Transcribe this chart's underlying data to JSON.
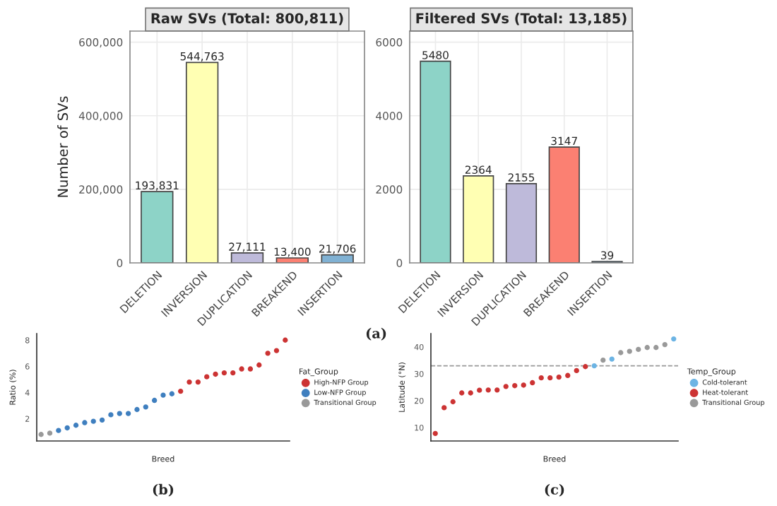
{
  "chart_data": [
    {
      "type": "bar",
      "title": "Raw SVs (Total: 800,811)",
      "ylabel": "Number of SVs",
      "categories": [
        "DELETION",
        "INVERSION",
        "DUPLICATION",
        "BREAKEND",
        "INSERTION"
      ],
      "values": [
        193831,
        544763,
        27111,
        13400,
        21706
      ],
      "colors": [
        "#8dd3c7",
        "#ffffb3",
        "#bebada",
        "#fb8072",
        "#80b1d3"
      ],
      "ylim": [
        0,
        630000
      ],
      "yticks": [
        {
          "value": 0,
          "label": "0"
        },
        {
          "value": 200000,
          "label": "200,000"
        },
        {
          "value": 400000,
          "label": "400,000"
        },
        {
          "value": 600000,
          "label": "600,000"
        }
      ],
      "data_labels": true,
      "value_labels": [
        "193,831",
        "544,763",
        "27,111",
        "13,400",
        "21,706"
      ],
      "grid": true,
      "legend": false,
      "annotations": [
        "(a)"
      ]
    },
    {
      "type": "bar",
      "title": "Filtered SVs (Total: 13,185)",
      "categories": [
        "DELETION",
        "INVERSION",
        "DUPLICATION",
        "BREAKEND",
        "INSERTION"
      ],
      "values": [
        5480,
        2364,
        2155,
        3147,
        39
      ],
      "colors": [
        "#8dd3c7",
        "#ffffb3",
        "#bebada",
        "#fb8072",
        "#80b1d3"
      ],
      "ylim": [
        0,
        6300
      ],
      "yticks": [
        0,
        2000,
        4000,
        6000
      ],
      "data_labels": true,
      "grid": true,
      "legend": false
    },
    {
      "type": "scatter",
      "xlabel": "Breed",
      "ylabel": "Ratio (%)",
      "legend_title": "Fat_Group",
      "categories": [
        null,
        null,
        null,
        null,
        null,
        null,
        null,
        null,
        null,
        null,
        null,
        null,
        null,
        null,
        null,
        null,
        null,
        null,
        null,
        null,
        null,
        null,
        null,
        null,
        null,
        null,
        null,
        null,
        null
      ],
      "ylim": [
        0.3,
        8.5
      ],
      "yticks": [
        2,
        4,
        6,
        8
      ],
      "grid": false,
      "legend": "right",
      "marker": "circle",
      "annotations": [
        "(b)"
      ],
      "series": [
        {
          "name": "High-NFP Group",
          "color": "#cc3333",
          "values": [
            null,
            null,
            null,
            null,
            null,
            null,
            null,
            null,
            null,
            null,
            null,
            null,
            null,
            null,
            null,
            null,
            4.1,
            4.8,
            4.8,
            5.2,
            5.4,
            5.5,
            5.5,
            5.8,
            5.8,
            6.1,
            7.0,
            7.2,
            8.0
          ]
        },
        {
          "name": "Low-NFP Group",
          "color": "#3f7fbf",
          "values": [
            null,
            null,
            1.1,
            1.3,
            1.5,
            1.7,
            1.8,
            1.9,
            2.3,
            2.4,
            2.4,
            2.7,
            2.9,
            3.4,
            3.8,
            3.9,
            null,
            null,
            null,
            null,
            null,
            null,
            null,
            null,
            null,
            null,
            null,
            null,
            null
          ]
        },
        {
          "name": "Transitional Group",
          "color": "#999999",
          "values": [
            0.8,
            0.9,
            null,
            null,
            null,
            null,
            null,
            null,
            null,
            null,
            null,
            null,
            null,
            null,
            null,
            null,
            null,
            null,
            null,
            null,
            null,
            null,
            null,
            null,
            null,
            null,
            null,
            null,
            null
          ]
        }
      ]
    },
    {
      "type": "scatter",
      "xlabel": "Breed",
      "ylabel": "Latitude (°N)",
      "legend_title": "Temp_Group",
      "categories": [
        null,
        null,
        null,
        null,
        null,
        null,
        null,
        null,
        null,
        null,
        null,
        null,
        null,
        null,
        null,
        null,
        null,
        null,
        null,
        null,
        null,
        null,
        null,
        null,
        null,
        null,
        null,
        null
      ],
      "ylim": [
        5,
        45
      ],
      "yticks": [
        10,
        20,
        30,
        40
      ],
      "grid": false,
      "legend": "right",
      "marker": "circle",
      "annotations": [
        "(c)"
      ],
      "ref_lines": [
        {
          "axis": "y",
          "value": 33.0,
          "color": "#999999",
          "line_style": "dashed"
        }
      ],
      "series": [
        {
          "name": "Cold-tolerant",
          "color": "#6cb4e4",
          "values": [
            null,
            null,
            null,
            null,
            null,
            null,
            null,
            null,
            null,
            null,
            null,
            null,
            null,
            null,
            null,
            null,
            null,
            null,
            33.0,
            null,
            35.5,
            null,
            null,
            null,
            null,
            null,
            null,
            43.0
          ]
        },
        {
          "name": "Heat-tolerant",
          "color": "#cc3333",
          "values": [
            7.8,
            17.4,
            19.6,
            22.9,
            22.9,
            23.9,
            24.0,
            24.0,
            25.3,
            25.6,
            25.8,
            26.7,
            28.5,
            28.5,
            28.8,
            29.4,
            31.2,
            32.7,
            null,
            null,
            null,
            null,
            null,
            null,
            null,
            null,
            null,
            null
          ]
        },
        {
          "name": "Transitional Group",
          "color": "#999999",
          "values": [
            null,
            null,
            null,
            null,
            null,
            null,
            null,
            null,
            null,
            null,
            null,
            null,
            null,
            null,
            null,
            null,
            null,
            null,
            null,
            35.1,
            null,
            37.9,
            38.4,
            39.1,
            39.8,
            39.8,
            40.9,
            null
          ]
        }
      ]
    }
  ]
}
